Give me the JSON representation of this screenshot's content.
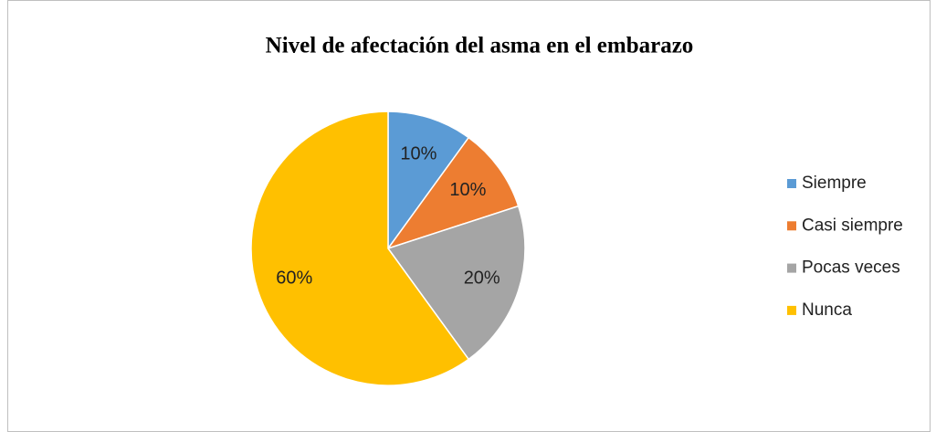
{
  "chart_data": {
    "type": "pie",
    "title": "Nivel de afectación del asma en el embarazo",
    "categories": [
      "Siempre",
      "Casi siempre",
      "Pocas veces",
      "Nunca"
    ],
    "values": [
      10,
      10,
      20,
      60
    ],
    "value_labels": [
      "10%",
      "10%",
      "20%",
      "60%"
    ],
    "colors": [
      "#5b9bd5",
      "#ed7d31",
      "#a5a5a5",
      "#ffc000"
    ],
    "legend": "right"
  }
}
